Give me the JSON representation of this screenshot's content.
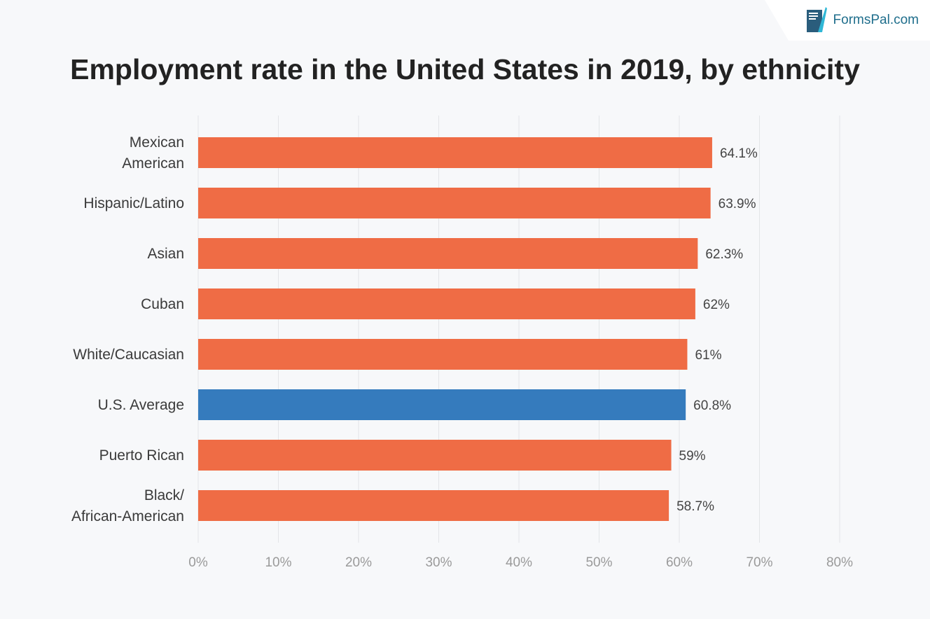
{
  "brand": {
    "name": "FormsPal.com",
    "icon": "formspal-logo-icon"
  },
  "colors": {
    "default_bar": "#ef6c45",
    "highlight_bar": "#357bbd",
    "grid": "#e3e5e8",
    "background": "#f7f8fa"
  },
  "chart_data": {
    "type": "bar",
    "orientation": "horizontal",
    "title": "Employment rate in the United States in 2019, by ethnicity",
    "xlabel": "",
    "ylabel": "",
    "categories": [
      [
        "Mexican",
        "American"
      ],
      [
        "Hispanic/Latino"
      ],
      [
        "Asian"
      ],
      [
        "Cuban"
      ],
      [
        "White/Caucasian"
      ],
      [
        "U.S. Average"
      ],
      [
        "Puerto Rican"
      ],
      [
        "Black/",
        "African-American"
      ]
    ],
    "values": [
      64.1,
      63.9,
      62.3,
      62,
      61,
      60.8,
      59,
      58.7
    ],
    "value_labels": [
      "64.1%",
      "63.9%",
      "62.3%",
      "62%",
      "61%",
      "60.8%",
      "59%",
      "58.7%"
    ],
    "highlight_index": 5,
    "xlim": [
      0,
      80
    ],
    "ticks": [
      0,
      10,
      20,
      30,
      40,
      50,
      60,
      70,
      80
    ],
    "tick_labels": [
      "0%",
      "10%",
      "20%",
      "30%",
      "40%",
      "50%",
      "60%",
      "70%",
      "80%"
    ],
    "grid": true,
    "legend": "none"
  }
}
